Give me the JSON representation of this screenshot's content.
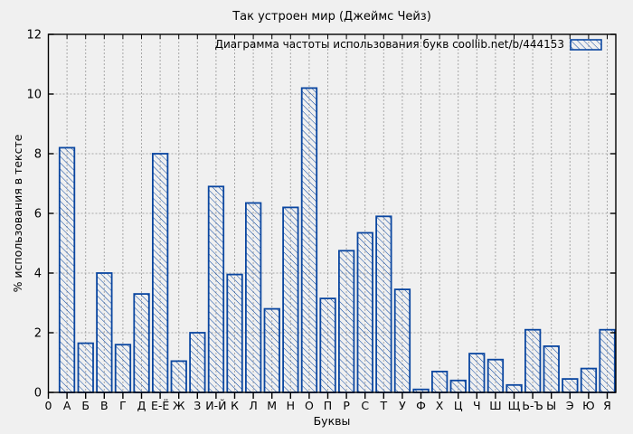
{
  "chart_data": {
    "type": "bar",
    "title": "Так устроен мир (Джеймс Чейз)",
    "legend": "Диаграмма частоты использования букв  coollib.net/b/444153",
    "xlabel": "Буквы",
    "ylabel": "% использования в тексте",
    "origin_label": "0",
    "categories": [
      "А",
      "Б",
      "В",
      "Г",
      "Д",
      "Е-Ё",
      "Ж",
      "З",
      "И-Й",
      "К",
      "Л",
      "М",
      "Н",
      "О",
      "П",
      "Р",
      "С",
      "Т",
      "У",
      "Ф",
      "Х",
      "Ц",
      "Ч",
      "Ш",
      "Щ",
      "Ь-Ъ",
      "Ы",
      "Э",
      "Ю",
      "Я"
    ],
    "values": [
      8.2,
      1.65,
      4.0,
      1.6,
      3.3,
      8.0,
      1.05,
      2.0,
      6.9,
      3.95,
      6.35,
      2.8,
      6.2,
      10.2,
      3.15,
      4.75,
      5.35,
      5.9,
      3.45,
      0.1,
      0.7,
      0.4,
      1.3,
      1.1,
      0.25,
      2.1,
      1.55,
      0.45,
      0.8,
      2.1
    ],
    "ylim": [
      0,
      12
    ],
    "yticks": [
      0,
      2,
      4,
      6,
      8,
      10,
      12
    ],
    "grid": true,
    "legend_position": "top-right-inside",
    "bar_style": "diagonal-hatch",
    "colors": {
      "bar": "#0a46a0",
      "grid": "#a8a8a8",
      "axis": "#000000",
      "background": "#f0f0f0",
      "legend_text": "#000066",
      "text": "#000000"
    }
  }
}
